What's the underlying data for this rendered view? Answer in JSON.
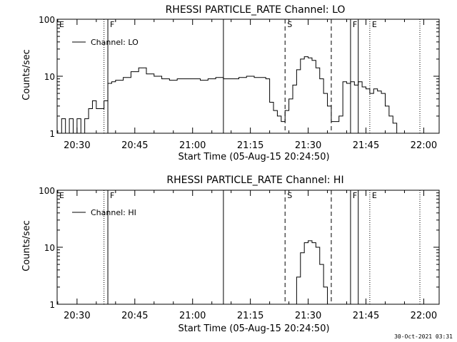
{
  "timestamp": "30-Oct-2021 03:31",
  "chart_data": [
    {
      "type": "line",
      "title": "RHESSI PARTICLE_RATE Channel: LO",
      "xlabel": "Start Time (05-Aug-15 20:24:50)",
      "ylabel": "Counts/sec",
      "y_scale": "log",
      "ylim": [
        1,
        100
      ],
      "xlim": [
        "20:24:50",
        "22:04:00"
      ],
      "x_ticks": [
        "20:30",
        "20:45",
        "21:00",
        "21:15",
        "21:30",
        "21:45",
        "22:00"
      ],
      "y_ticks": [
        "1",
        "10",
        "100"
      ],
      "legend": {
        "position": "top-left",
        "label": "Channel: LO"
      },
      "markers": [
        {
          "time": "20:24:50",
          "label": "E",
          "style": "dotted"
        },
        {
          "time": "20:37:00",
          "label": "",
          "style": "dotted"
        },
        {
          "time": "20:38:00",
          "label": "F",
          "style": "solid"
        },
        {
          "time": "21:08:00",
          "label": "",
          "style": "solid"
        },
        {
          "time": "21:24:00",
          "label": "S",
          "style": "dashed"
        },
        {
          "time": "21:36:00",
          "label": "",
          "style": "dashed"
        },
        {
          "time": "21:41:00",
          "label": "F",
          "style": "solid"
        },
        {
          "time": "21:43:00",
          "label": "",
          "style": "solid"
        },
        {
          "time": "21:46:00",
          "label": "E",
          "style": "dotted"
        },
        {
          "time": "21:59:00",
          "label": "",
          "style": "dotted"
        }
      ],
      "series": [
        {
          "name": "Channel: LO",
          "x": [
            "20:25",
            "20:26",
            "20:27",
            "20:28",
            "20:29",
            "20:30",
            "20:31",
            "20:32",
            "20:33",
            "20:34",
            "20:35",
            "20:36",
            "20:37",
            "20:38",
            "20:39",
            "20:40",
            "20:42",
            "20:44",
            "20:46",
            "20:48",
            "20:50",
            "20:52",
            "20:54",
            "20:56",
            "20:58",
            "21:00",
            "21:02",
            "21:04",
            "21:06",
            "21:08",
            "21:10",
            "21:12",
            "21:14",
            "21:16",
            "21:18",
            "21:19",
            "21:20",
            "21:21",
            "21:22",
            "21:23",
            "21:24",
            "21:25",
            "21:26",
            "21:27",
            "21:28",
            "21:29",
            "21:30",
            "21:31",
            "21:32",
            "21:33",
            "21:34",
            "21:35",
            "21:36",
            "21:37",
            "21:38",
            "21:39",
            "21:40",
            "21:41",
            "21:42",
            "21:43",
            "21:44",
            "21:45",
            "21:46",
            "21:47",
            "21:48",
            "21:49",
            "21:50",
            "21:51",
            "21:52",
            "21:53"
          ],
          "y": [
            1,
            1.8,
            1,
            1.8,
            1,
            1.8,
            1,
            1.8,
            2.7,
            3.7,
            2.7,
            2.7,
            3.7,
            7.5,
            8,
            8.5,
            9.5,
            12,
            14,
            11,
            10,
            9,
            8.5,
            9,
            9,
            9,
            8.5,
            9,
            9.5,
            9,
            9,
            9.5,
            10,
            9.5,
            9.5,
            9,
            3.5,
            2.5,
            2,
            1.6,
            2.5,
            4,
            7,
            13,
            20,
            22,
            21,
            19,
            14,
            9,
            5,
            3,
            1.6,
            1.6,
            2,
            8,
            7.5,
            8,
            7,
            8,
            6.5,
            6,
            5,
            6,
            5.5,
            5,
            3,
            2,
            1.5,
            1
          ]
        }
      ]
    },
    {
      "type": "line",
      "title": "RHESSI PARTICLE_RATE Channel: HI",
      "xlabel": "Start Time (05-Aug-15 20:24:50)",
      "ylabel": "Counts/sec",
      "y_scale": "log",
      "ylim": [
        1,
        100
      ],
      "xlim": [
        "20:24:50",
        "22:04:00"
      ],
      "x_ticks": [
        "20:30",
        "20:45",
        "21:00",
        "21:15",
        "21:30",
        "21:45",
        "22:00"
      ],
      "y_ticks": [
        "1",
        "10",
        "100"
      ],
      "legend": {
        "position": "top-left",
        "label": "Channel: HI"
      },
      "markers": [
        {
          "time": "20:24:50",
          "label": "E",
          "style": "dotted"
        },
        {
          "time": "20:37:00",
          "label": "",
          "style": "dotted"
        },
        {
          "time": "20:38:00",
          "label": "F",
          "style": "solid"
        },
        {
          "time": "21:08:00",
          "label": "",
          "style": "solid"
        },
        {
          "time": "21:24:00",
          "label": "S",
          "style": "dashed"
        },
        {
          "time": "21:36:00",
          "label": "",
          "style": "dashed"
        },
        {
          "time": "21:41:00",
          "label": "F",
          "style": "solid"
        },
        {
          "time": "21:43:00",
          "label": "",
          "style": "solid"
        },
        {
          "time": "21:46:00",
          "label": "E",
          "style": "dotted"
        },
        {
          "time": "21:59:00",
          "label": "",
          "style": "dotted"
        }
      ],
      "series": [
        {
          "name": "Channel: HI",
          "x": [
            "21:26",
            "21:27",
            "21:28",
            "21:29",
            "21:30",
            "21:31",
            "21:32",
            "21:33",
            "21:34",
            "21:35"
          ],
          "y": [
            1,
            3,
            8,
            12,
            13,
            12,
            10,
            5,
            2,
            1
          ]
        }
      ]
    }
  ]
}
